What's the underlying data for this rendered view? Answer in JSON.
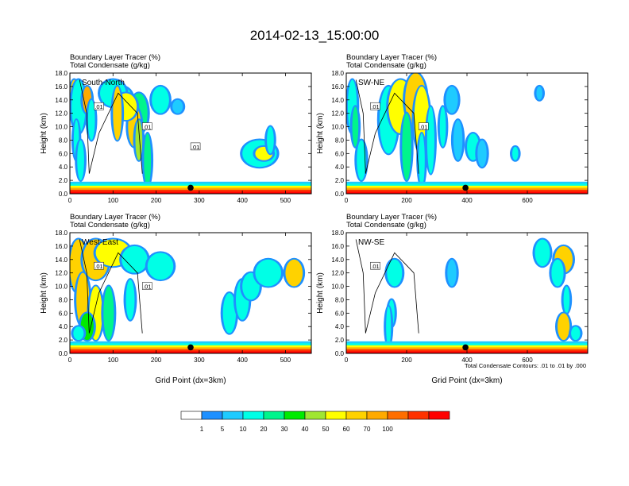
{
  "figure": {
    "title": "2014-02-13_15:00:00",
    "footnote": "Total Condensate Contours: .01 to .01 by .000"
  },
  "colorbar": {
    "colors": [
      "#ffffff",
      "#1e90ff",
      "#1ecbff",
      "#00ffe6",
      "#00f58c",
      "#00eb00",
      "#a0e632",
      "#ffff00",
      "#ffd200",
      "#ffaa00",
      "#ff6e00",
      "#ff3200",
      "#ff0000"
    ],
    "labels": [
      "1",
      "5",
      "10",
      "20",
      "30",
      "40",
      "50",
      "60",
      "70",
      "100"
    ]
  },
  "chart_data": [
    {
      "type": "heatmap",
      "panel": "South-North",
      "subtitle_line1": "Boundary Layer Tracer    (%)",
      "subtitle_line2": "Total Condensate    (g/kg)",
      "ylabel": "Height (km)",
      "xlabel": "",
      "xlim": [
        0,
        560
      ],
      "ylim": [
        0,
        18
      ],
      "xticks": [
        "0",
        "100",
        "200",
        "300",
        "400",
        "500"
      ],
      "yticks": [
        "0.0",
        "2.0",
        "4.0",
        "6.0",
        "8.0",
        "10.0",
        "12.0",
        "14.0",
        "16.0",
        "18.0"
      ],
      "contour_labels": [
        ".01",
        ".01",
        ".01"
      ],
      "marker_x": 280
    },
    {
      "type": "heatmap",
      "panel": "SW-NE",
      "subtitle_line1": "Boundary Layer Tracer    (%)",
      "subtitle_line2": "Total Condensate    (g/kg)",
      "ylabel": "Height (km)",
      "xlabel": "",
      "xlim": [
        0,
        800
      ],
      "ylim": [
        0,
        18
      ],
      "xticks": [
        "0",
        "200",
        "400",
        "600"
      ],
      "yticks": [
        "0.0",
        "2.0",
        "4.0",
        "6.0",
        "8.0",
        "10.0",
        "12.0",
        "14.0",
        "16.0",
        "18.0"
      ],
      "contour_labels": [
        ".01",
        ".01"
      ],
      "marker_x": 395
    },
    {
      "type": "heatmap",
      "panel": "West-East",
      "subtitle_line1": "Boundary Layer Tracer    (%)",
      "subtitle_line2": "Total Condensate    (g/kg)",
      "ylabel": "Height (km)",
      "xlabel": "Grid Point (dx=3km)",
      "xlim": [
        0,
        560
      ],
      "ylim": [
        0,
        18
      ],
      "xticks": [
        "0",
        "100",
        "200",
        "300",
        "400",
        "500"
      ],
      "yticks": [
        "0.0",
        "2.0",
        "4.0",
        "6.0",
        "8.0",
        "10.0",
        "12.0",
        "14.0",
        "16.0",
        "18.0"
      ],
      "contour_labels": [
        ".01",
        ".01"
      ],
      "marker_x": 280
    },
    {
      "type": "heatmap",
      "panel": "NW-SE",
      "subtitle_line1": "Boundary Layer Tracer    (%)",
      "subtitle_line2": "Total Condensate    (g/kg)",
      "ylabel": "Height (km)",
      "xlabel": "Grid Point (dx=3km)",
      "xlim": [
        0,
        800
      ],
      "ylim": [
        0,
        18
      ],
      "xticks": [
        "0",
        "200",
        "400",
        "600"
      ],
      "yticks": [
        "0.0",
        "2.0",
        "4.0",
        "6.0",
        "8.0",
        "10.0",
        "12.0",
        "14.0",
        "16.0",
        "18.0"
      ],
      "contour_labels": [
        ".01"
      ],
      "marker_x": 395
    }
  ]
}
